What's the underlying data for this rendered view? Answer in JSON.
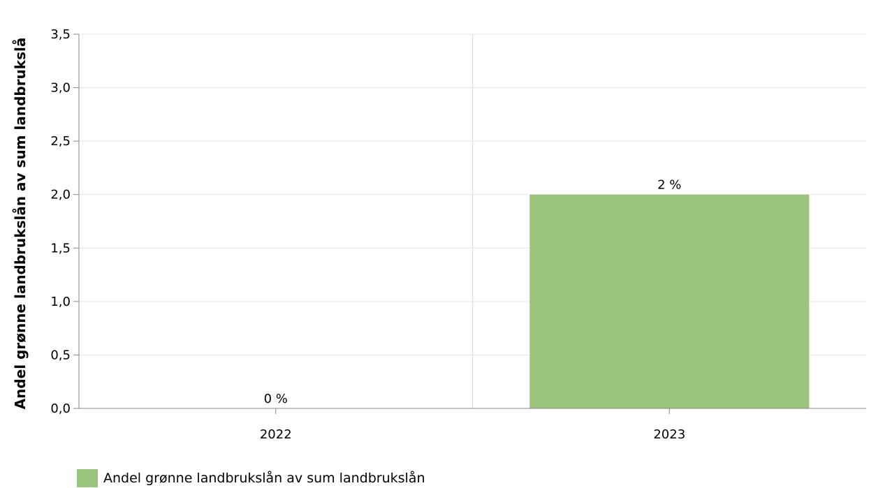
{
  "chart_data": {
    "type": "bar",
    "categories": [
      "2022",
      "2023"
    ],
    "series": [
      {
        "name": "Andel grønne landbrukslån av sum landbrukslån",
        "values": [
          0,
          2
        ],
        "data_labels": [
          "0 %",
          "2 %"
        ],
        "color": "#9bc47d"
      }
    ],
    "title": "",
    "xlabel": "",
    "ylabel": "Andel grønne landbrukslån av sum landbrukslå",
    "ylim": [
      0,
      3.5
    ],
    "yticks": [
      0,
      0.5,
      1,
      1.5,
      2,
      2.5,
      3,
      3.5
    ],
    "ytick_labels": [
      "0,0",
      "0,5",
      "1,0",
      "1,5",
      "2,0",
      "2,5",
      "3,0",
      "3,5"
    ],
    "grid": true,
    "legend_position": "bottom-left"
  }
}
